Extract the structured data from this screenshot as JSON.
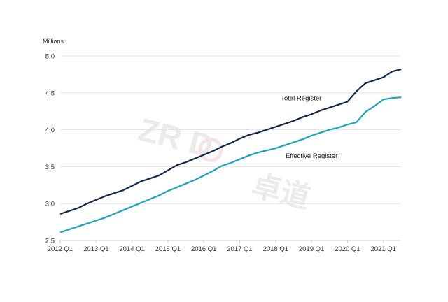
{
  "watermark": {
    "latin": "ZR    D",
    "cjk": "卓道"
  },
  "chart_data": {
    "type": "line",
    "ylabel": "Millions",
    "ylim": [
      2.5,
      5.0
    ],
    "yticks": [
      "2.5",
      "3.0",
      "3.5",
      "4.0",
      "4.5",
      "5.0"
    ],
    "xticks": [
      "2012 Q1",
      "2013 Q1",
      "2014 Q1",
      "2015 Q1",
      "2016 Q1",
      "2017 Q1",
      "2018 Q1",
      "2019 Q1",
      "2020 Q1",
      "2021 Q1"
    ],
    "grid": "horizontal",
    "series": [
      {
        "name": "Total Register",
        "color": "#13294b",
        "values": [
          2.86,
          2.9,
          2.94,
          3.0,
          3.05,
          3.1,
          3.14,
          3.18,
          3.24,
          3.3,
          3.34,
          3.38,
          3.45,
          3.52,
          3.56,
          3.61,
          3.66,
          3.71,
          3.77,
          3.82,
          3.88,
          3.93,
          3.96,
          4.0,
          4.04,
          4.08,
          4.12,
          4.17,
          4.21,
          4.26,
          4.3,
          4.34,
          4.38,
          4.52,
          4.63,
          4.67,
          4.71,
          4.79,
          4.82
        ]
      },
      {
        "name": "Effective Register",
        "color": "#1ba5b8",
        "values": [
          2.61,
          2.65,
          2.69,
          2.73,
          2.77,
          2.81,
          2.86,
          2.91,
          2.96,
          3.01,
          3.06,
          3.11,
          3.17,
          3.22,
          3.27,
          3.32,
          3.38,
          3.44,
          3.51,
          3.55,
          3.6,
          3.65,
          3.69,
          3.72,
          3.75,
          3.79,
          3.83,
          3.87,
          3.92,
          3.96,
          4.0,
          4.03,
          4.07,
          4.1,
          4.24,
          4.32,
          4.41,
          4.43,
          4.44
        ]
      }
    ]
  }
}
